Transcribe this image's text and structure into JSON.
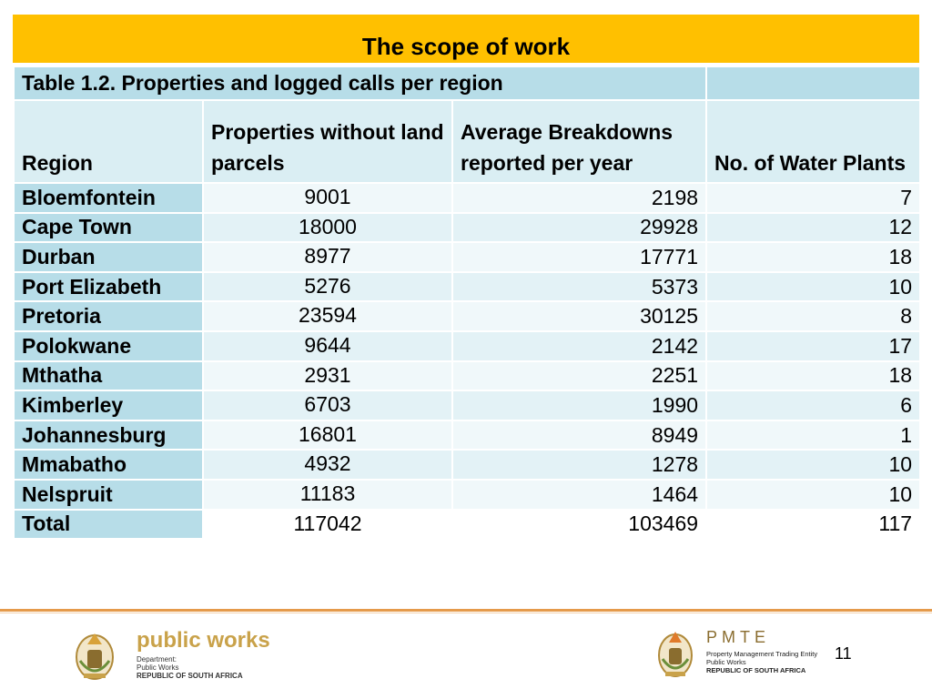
{
  "slide_title": "The scope of work",
  "table": {
    "caption": "Table 1.2. Properties and logged calls per region",
    "headers": [
      "Region",
      "Properties without land parcels",
      "Average Breakdowns reported per year",
      "No. of Water Plants"
    ],
    "rows": [
      {
        "region": "Bloemfontein",
        "properties": "9001",
        "breakdowns": "2198",
        "plants": "7"
      },
      {
        "region": "Cape Town",
        "properties": "18000",
        "breakdowns": "29928",
        "plants": "12"
      },
      {
        "region": "Durban",
        "properties": "8977",
        "breakdowns": "17771",
        "plants": "18"
      },
      {
        "region": "Port Elizabeth",
        "properties": "5276",
        "breakdowns": "5373",
        "plants": "10"
      },
      {
        "region": "Pretoria",
        "properties": "23594",
        "breakdowns": "30125",
        "plants": "8"
      },
      {
        "region": "Polokwane",
        "properties": "9644",
        "breakdowns": "2142",
        "plants": "17"
      },
      {
        "region": "Mthatha",
        "properties": "2931",
        "breakdowns": "2251",
        "plants": "18"
      },
      {
        "region": "Kimberley",
        "properties": "6703",
        "breakdowns": "1990",
        "plants": "6"
      },
      {
        "region": "Johannesburg",
        "properties": "16801",
        "breakdowns": "8949",
        "plants": "1"
      },
      {
        "region": "Mmabatho",
        "properties": "4932",
        "breakdowns": "1278",
        "plants": "10"
      },
      {
        "region": "Nelspruit",
        "properties": "11183",
        "breakdowns": "1464",
        "plants": "10"
      }
    ],
    "total": {
      "region": "Total",
      "properties": "117042",
      "breakdowns": "103469",
      "plants": "117"
    }
  },
  "footer": {
    "left_logo": {
      "name": "public works",
      "line1": "Department:",
      "line2": "Public Works",
      "line3": "REPUBLIC OF SOUTH AFRICA"
    },
    "right_logo": {
      "name": "PMTE",
      "line1": "Property Management Trading Entity",
      "line2": "Public Works",
      "line3": "REPUBLIC OF SOUTH AFRICA"
    },
    "page_number": "11"
  },
  "colors": {
    "title_bar": "#ffc000",
    "header_blue": "#b7dde8",
    "rule": "#e59a4a"
  }
}
